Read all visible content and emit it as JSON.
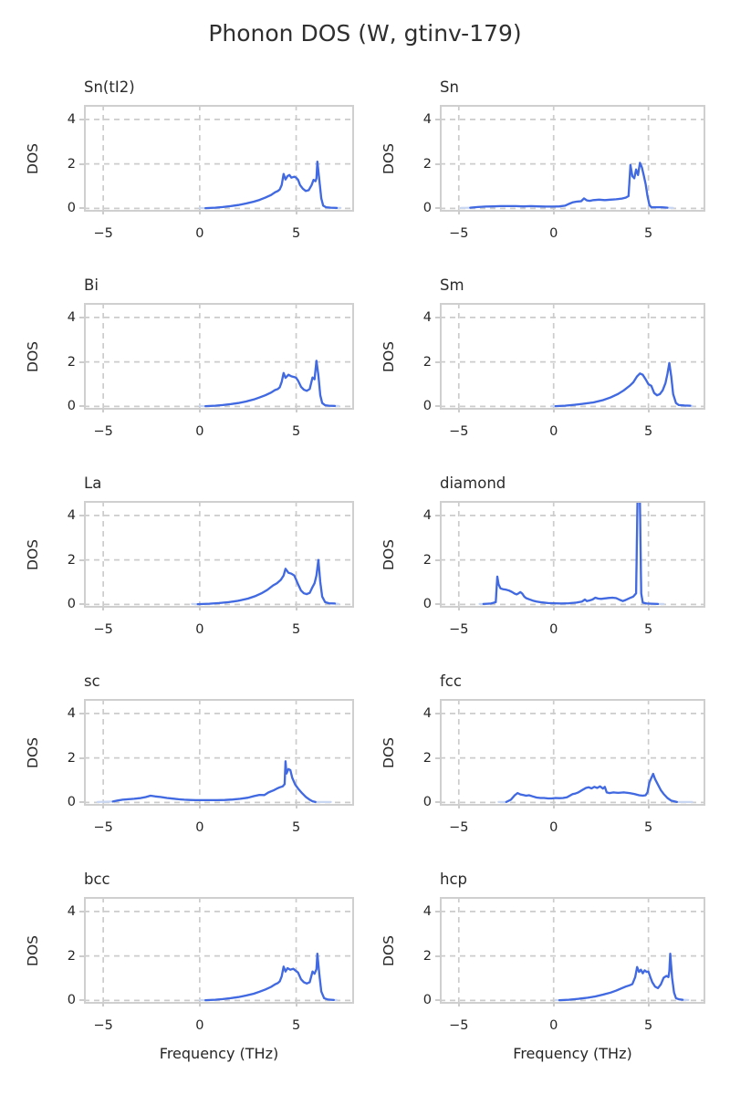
{
  "page_title": "Phonon DOS (W, gtinv-179)",
  "chart_data": {
    "type": "line",
    "suptitle": "Phonon DOS (W, gtinv-179)",
    "xlabel": "Frequency (THz)",
    "ylabel": "DOS",
    "xlim": [
      -6,
      8
    ],
    "ylim": [
      -0.15,
      4.65
    ],
    "x_ticks": [
      -5,
      0,
      5
    ],
    "y_ticks": [
      0,
      2,
      4
    ],
    "grid": "dashed",
    "legend": "none",
    "layout": "5 rows x 2 columns, shared axis style",
    "colors": {
      "line": "#4169e1",
      "ghost_line": "#c9d7f3",
      "grid": "#cccccc",
      "spine": "#cfcfcf",
      "text": "#262626",
      "title_text": "#2f2f2f",
      "background": "#ffffff"
    },
    "subplots": [
      {
        "title": "Sn(tI2)",
        "ghost_extent": [
          0.0,
          7.3
        ],
        "x": [
          0.3,
          0.8,
          1.2,
          1.6,
          2.0,
          2.4,
          2.8,
          3.1,
          3.4,
          3.7,
          3.9,
          4.05,
          4.15,
          4.25,
          4.35,
          4.45,
          4.55,
          4.65,
          4.75,
          4.9,
          5.0,
          5.1,
          5.2,
          5.35,
          5.5,
          5.65,
          5.8,
          5.9,
          6.0,
          6.05,
          6.1,
          6.2,
          6.3,
          6.4,
          6.55,
          6.8,
          7.1
        ],
        "y": [
          0.01,
          0.03,
          0.06,
          0.1,
          0.15,
          0.22,
          0.3,
          0.38,
          0.48,
          0.6,
          0.72,
          0.78,
          0.85,
          1.05,
          1.55,
          1.3,
          1.45,
          1.5,
          1.38,
          1.42,
          1.38,
          1.28,
          1.05,
          0.88,
          0.78,
          0.82,
          1.05,
          1.28,
          1.22,
          1.35,
          2.1,
          1.3,
          0.45,
          0.12,
          0.05,
          0.03,
          0.02
        ]
      },
      {
        "title": "Sn",
        "ghost_extent": [
          -4.9,
          6.3
        ],
        "x": [
          -4.4,
          -4.0,
          -3.6,
          -3.2,
          -2.8,
          -2.4,
          -2.0,
          -1.6,
          -1.2,
          -0.8,
          -0.4,
          0.0,
          0.3,
          0.6,
          0.8,
          1.0,
          1.2,
          1.45,
          1.6,
          1.75,
          1.9,
          2.1,
          2.4,
          2.7,
          3.0,
          3.3,
          3.6,
          3.8,
          3.95,
          4.05,
          4.15,
          4.25,
          4.35,
          4.45,
          4.55,
          4.65,
          4.75,
          4.85,
          4.95,
          5.05,
          5.15,
          5.4,
          5.7,
          6.0
        ],
        "y": [
          0.03,
          0.06,
          0.08,
          0.09,
          0.1,
          0.1,
          0.1,
          0.09,
          0.1,
          0.09,
          0.08,
          0.08,
          0.09,
          0.12,
          0.2,
          0.27,
          0.3,
          0.32,
          0.45,
          0.36,
          0.34,
          0.37,
          0.39,
          0.37,
          0.39,
          0.41,
          0.44,
          0.48,
          0.55,
          1.95,
          1.45,
          1.35,
          1.75,
          1.5,
          2.05,
          1.85,
          1.5,
          1.1,
          0.55,
          0.15,
          0.05,
          0.05,
          0.05,
          0.03
        ]
      },
      {
        "title": "Bi",
        "ghost_extent": [
          0.0,
          7.2
        ],
        "x": [
          0.3,
          0.8,
          1.2,
          1.6,
          2.0,
          2.4,
          2.8,
          3.1,
          3.4,
          3.7,
          3.9,
          4.05,
          4.15,
          4.25,
          4.35,
          4.45,
          4.6,
          4.75,
          4.9,
          5.0,
          5.1,
          5.25,
          5.4,
          5.55,
          5.7,
          5.85,
          5.95,
          6.05,
          6.15,
          6.25,
          6.35,
          6.5,
          6.7,
          7.0
        ],
        "y": [
          0.01,
          0.03,
          0.06,
          0.1,
          0.15,
          0.22,
          0.31,
          0.4,
          0.5,
          0.62,
          0.73,
          0.78,
          0.86,
          1.1,
          1.5,
          1.28,
          1.42,
          1.35,
          1.32,
          1.28,
          1.15,
          0.88,
          0.75,
          0.7,
          0.78,
          1.3,
          1.22,
          2.05,
          1.4,
          0.5,
          0.15,
          0.05,
          0.03,
          0.02
        ]
      },
      {
        "title": "Sm",
        "ghost_extent": [
          -0.1,
          7.3
        ],
        "x": [
          0.1,
          0.6,
          1.1,
          1.6,
          2.1,
          2.6,
          3.0,
          3.4,
          3.7,
          4.0,
          4.2,
          4.4,
          4.55,
          4.7,
          4.85,
          5.0,
          5.15,
          5.3,
          5.45,
          5.6,
          5.75,
          5.9,
          6.0,
          6.1,
          6.2,
          6.3,
          6.45,
          6.6,
          6.9,
          7.2
        ],
        "y": [
          0.01,
          0.03,
          0.07,
          0.12,
          0.18,
          0.28,
          0.4,
          0.56,
          0.72,
          0.92,
          1.08,
          1.35,
          1.48,
          1.42,
          1.22,
          1.0,
          0.92,
          0.6,
          0.5,
          0.55,
          0.72,
          1.05,
          1.45,
          1.95,
          1.35,
          0.55,
          0.15,
          0.06,
          0.04,
          0.03
        ]
      },
      {
        "title": "La",
        "ghost_extent": [
          -0.4,
          7.2
        ],
        "x": [
          -0.1,
          0.5,
          1.0,
          1.5,
          2.0,
          2.5,
          2.9,
          3.2,
          3.5,
          3.8,
          4.0,
          4.2,
          4.35,
          4.45,
          4.6,
          4.75,
          4.9,
          5.0,
          5.1,
          5.25,
          5.4,
          5.55,
          5.7,
          5.85,
          5.95,
          6.05,
          6.15,
          6.25,
          6.35,
          6.5,
          6.7,
          7.0
        ],
        "y": [
          0.01,
          0.03,
          0.06,
          0.1,
          0.16,
          0.26,
          0.38,
          0.5,
          0.65,
          0.85,
          0.95,
          1.1,
          1.3,
          1.6,
          1.42,
          1.38,
          1.3,
          1.1,
          0.9,
          0.62,
          0.5,
          0.46,
          0.52,
          0.78,
          0.95,
          1.3,
          2.0,
          1.0,
          0.35,
          0.1,
          0.05,
          0.04
        ]
      },
      {
        "title": "diamond",
        "ghost_extent": [
          -3.9,
          5.8
        ],
        "x": [
          -3.7,
          -3.3,
          -3.05,
          -2.97,
          -2.9,
          -2.8,
          -2.65,
          -2.5,
          -2.35,
          -2.2,
          -2.05,
          -1.95,
          -1.85,
          -1.75,
          -1.65,
          -1.55,
          -1.45,
          -1.3,
          -1.1,
          -0.9,
          -0.6,
          -0.3,
          0.0,
          0.4,
          0.8,
          1.2,
          1.5,
          1.65,
          1.75,
          1.9,
          2.05,
          2.2,
          2.35,
          2.5,
          2.7,
          2.9,
          3.1,
          3.3,
          3.5,
          3.65,
          3.8,
          4.0,
          4.2,
          4.35,
          4.42,
          4.48,
          4.55,
          4.62,
          4.7,
          4.9,
          5.2,
          5.5
        ],
        "y": [
          0.02,
          0.04,
          0.1,
          1.25,
          0.9,
          0.72,
          0.68,
          0.66,
          0.62,
          0.56,
          0.48,
          0.45,
          0.5,
          0.55,
          0.48,
          0.35,
          0.28,
          0.23,
          0.17,
          0.13,
          0.09,
          0.06,
          0.05,
          0.04,
          0.05,
          0.08,
          0.13,
          0.22,
          0.15,
          0.18,
          0.22,
          0.3,
          0.26,
          0.25,
          0.27,
          0.29,
          0.3,
          0.28,
          0.2,
          0.15,
          0.2,
          0.28,
          0.35,
          0.5,
          4.6,
          4.65,
          4.6,
          0.5,
          0.08,
          0.04,
          0.03,
          0.02
        ]
      },
      {
        "title": "sc",
        "ghost_extent": [
          -5.3,
          6.8
        ],
        "x": [
          -4.5,
          -4.25,
          -4.0,
          -3.7,
          -3.4,
          -3.1,
          -2.8,
          -2.55,
          -2.3,
          -2.0,
          -1.7,
          -1.4,
          -1.1,
          -0.8,
          -0.5,
          -0.2,
          0.1,
          0.5,
          0.9,
          1.3,
          1.7,
          2.1,
          2.5,
          2.8,
          3.1,
          3.35,
          3.55,
          3.7,
          3.85,
          4.0,
          4.15,
          4.3,
          4.4,
          4.45,
          4.5,
          4.6,
          4.7,
          4.8,
          4.95,
          5.1,
          5.3,
          5.5,
          5.7,
          5.85,
          6.0
        ],
        "y": [
          0.04,
          0.09,
          0.12,
          0.14,
          0.16,
          0.19,
          0.24,
          0.3,
          0.27,
          0.24,
          0.2,
          0.17,
          0.14,
          0.12,
          0.11,
          0.1,
          0.1,
          0.1,
          0.1,
          0.11,
          0.13,
          0.16,
          0.21,
          0.28,
          0.34,
          0.33,
          0.44,
          0.5,
          0.55,
          0.62,
          0.68,
          0.72,
          0.82,
          1.85,
          1.3,
          1.5,
          1.45,
          1.1,
          0.8,
          0.62,
          0.42,
          0.25,
          0.12,
          0.05,
          0.02
        ]
      },
      {
        "title": "fcc",
        "ghost_extent": [
          -2.9,
          7.3
        ],
        "x": [
          -2.5,
          -2.25,
          -2.05,
          -1.9,
          -1.75,
          -1.6,
          -1.45,
          -1.3,
          -1.1,
          -0.9,
          -0.7,
          -0.5,
          -0.3,
          -0.1,
          0.1,
          0.3,
          0.5,
          0.7,
          0.85,
          1.0,
          1.15,
          1.3,
          1.5,
          1.7,
          1.85,
          2.0,
          2.15,
          2.3,
          2.45,
          2.6,
          2.7,
          2.8,
          2.95,
          3.15,
          3.4,
          3.7,
          4.0,
          4.25,
          4.5,
          4.7,
          4.85,
          4.95,
          5.05,
          5.15,
          5.25,
          5.35,
          5.5,
          5.65,
          5.8,
          6.0,
          6.2,
          6.5
        ],
        "y": [
          0.02,
          0.12,
          0.32,
          0.42,
          0.36,
          0.33,
          0.3,
          0.32,
          0.27,
          0.22,
          0.2,
          0.2,
          0.18,
          0.18,
          0.2,
          0.19,
          0.2,
          0.23,
          0.3,
          0.37,
          0.4,
          0.45,
          0.55,
          0.65,
          0.68,
          0.63,
          0.7,
          0.65,
          0.72,
          0.62,
          0.7,
          0.45,
          0.42,
          0.45,
          0.43,
          0.45,
          0.42,
          0.38,
          0.32,
          0.3,
          0.32,
          0.45,
          0.9,
          1.1,
          1.28,
          1.05,
          0.8,
          0.55,
          0.38,
          0.2,
          0.08,
          0.02
        ]
      },
      {
        "title": "bcc",
        "ghost_extent": [
          0.0,
          7.1
        ],
        "x": [
          0.3,
          0.8,
          1.2,
          1.6,
          2.0,
          2.4,
          2.8,
          3.1,
          3.4,
          3.7,
          3.9,
          4.05,
          4.15,
          4.25,
          4.35,
          4.45,
          4.55,
          4.7,
          4.85,
          5.0,
          5.1,
          5.25,
          5.4,
          5.55,
          5.7,
          5.85,
          5.95,
          6.05,
          6.1,
          6.2,
          6.3,
          6.45,
          6.65,
          6.95
        ],
        "y": [
          0.01,
          0.03,
          0.06,
          0.1,
          0.15,
          0.22,
          0.3,
          0.39,
          0.49,
          0.61,
          0.72,
          0.78,
          0.86,
          1.08,
          1.52,
          1.3,
          1.45,
          1.38,
          1.42,
          1.32,
          1.25,
          0.95,
          0.82,
          0.76,
          0.82,
          1.3,
          1.2,
          1.4,
          2.1,
          1.2,
          0.4,
          0.1,
          0.04,
          0.02
        ]
      },
      {
        "title": "hcp",
        "ghost_extent": [
          0.1,
          7.1
        ],
        "x": [
          0.3,
          0.8,
          1.3,
          1.8,
          2.2,
          2.6,
          3.0,
          3.3,
          3.6,
          3.8,
          4.0,
          4.15,
          4.3,
          4.4,
          4.5,
          4.6,
          4.7,
          4.8,
          4.9,
          5.0,
          5.1,
          5.2,
          5.35,
          5.5,
          5.65,
          5.8,
          5.95,
          6.05,
          6.1,
          6.15,
          6.25,
          6.35,
          6.45,
          6.6,
          6.8
        ],
        "y": [
          0.01,
          0.03,
          0.07,
          0.12,
          0.18,
          0.26,
          0.35,
          0.44,
          0.55,
          0.62,
          0.68,
          0.73,
          1.05,
          1.5,
          1.28,
          1.38,
          1.22,
          1.35,
          1.28,
          1.3,
          1.05,
          0.82,
          0.62,
          0.55,
          0.72,
          1.02,
          1.1,
          1.05,
          1.3,
          2.1,
          1.0,
          0.35,
          0.1,
          0.05,
          0.03
        ]
      }
    ]
  }
}
